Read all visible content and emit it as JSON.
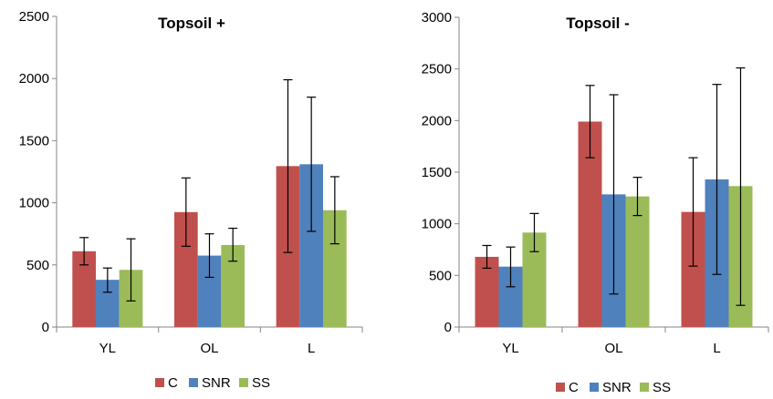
{
  "chart_data": [
    {
      "type": "bar",
      "title": "Topsoil +",
      "xlabel": "",
      "ylabel": "",
      "categories": [
        "YL",
        "OL",
        "L"
      ],
      "ylim": [
        0,
        2500
      ],
      "yticks": [
        0,
        500,
        1000,
        1500,
        2000,
        2500
      ],
      "grid": false,
      "legend": "bottom",
      "series": [
        {
          "name": "C",
          "color": "#c0504d",
          "values": [
            610,
            925,
            1295
          ],
          "err_low": [
            500,
            650,
            600
          ],
          "err_high": [
            720,
            1200,
            1990
          ]
        },
        {
          "name": "SNR",
          "color": "#4f81bd",
          "values": [
            380,
            575,
            1310
          ],
          "err_low": [
            280,
            400,
            770
          ],
          "err_high": [
            475,
            750,
            1850
          ]
        },
        {
          "name": "SS",
          "color": "#9bbb59",
          "values": [
            460,
            660,
            940
          ],
          "err_low": [
            210,
            530,
            670
          ],
          "err_high": [
            710,
            795,
            1210
          ]
        }
      ]
    },
    {
      "type": "bar",
      "title": "Topsoil -",
      "xlabel": "",
      "ylabel": "",
      "categories": [
        "YL",
        "OL",
        "L"
      ],
      "ylim": [
        0,
        3000
      ],
      "yticks": [
        0,
        500,
        1000,
        1500,
        2000,
        2500,
        3000
      ],
      "grid": false,
      "legend": "bottom",
      "series": [
        {
          "name": "C",
          "color": "#c0504d",
          "values": [
            680,
            1990,
            1115
          ],
          "err_low": [
            570,
            1640,
            590
          ],
          "err_high": [
            790,
            2340,
            1640
          ]
        },
        {
          "name": "SNR",
          "color": "#4f81bd",
          "values": [
            585,
            1285,
            1430
          ],
          "err_low": [
            390,
            320,
            510
          ],
          "err_high": [
            775,
            2250,
            2350
          ]
        },
        {
          "name": "SS",
          "color": "#9bbb59",
          "values": [
            915,
            1265,
            1365
          ],
          "err_low": [
            730,
            1080,
            210
          ],
          "err_high": [
            1100,
            1450,
            2510
          ]
        }
      ]
    }
  ]
}
